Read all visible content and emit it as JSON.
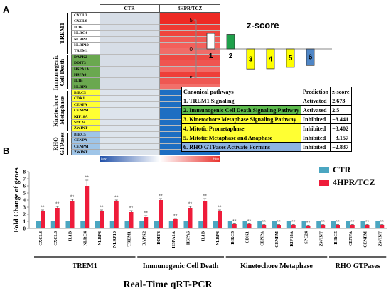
{
  "panels": {
    "a": "A",
    "b": "B"
  },
  "heatmap": {
    "columns": [
      "CTR",
      "4HPR/TCZ"
    ],
    "colorbar": {
      "low": "Low",
      "high": "High"
    },
    "groups": [
      {
        "label": "TREM1",
        "label_lines": [
          "TREM1"
        ],
        "style": "white",
        "genes": [
          "CXCL3",
          "CXCL8",
          "IL1B",
          "NLRC4",
          "NLRP3",
          "NLRP10",
          "TREM1"
        ]
      },
      {
        "label": "Immunogenic Cell Death",
        "label_lines": [
          "Immunogenic",
          "Cell Death"
        ],
        "style": "green",
        "genes": [
          "DAPK2",
          "DDIT3",
          "HSPA1A",
          "HSPA6",
          "IL1B",
          "NLRP3"
        ]
      },
      {
        "label": "Kinetochore Metaphase",
        "label_lines": [
          "Kinetochore",
          "Metaphase"
        ],
        "style": "yellow",
        "genes": [
          "BIRC5",
          "CDK1",
          "CENPA",
          "CENPM",
          "KIF18A",
          "SPC24",
          "ZWINT"
        ]
      },
      {
        "label": "RHO GTPases",
        "label_lines": [
          "RHO",
          "GTPases"
        ],
        "style": "blue",
        "genes": [
          "BIRC5",
          "CENPA",
          "CENPM",
          "ZWINT"
        ]
      }
    ],
    "colors": {
      "ctr": [
        "#d6dde6",
        "#d6dde6",
        "#d6dde6",
        "#d6dde6",
        "#d6dde6",
        "#d6dde6",
        "#d6dde6",
        "#d6dde6",
        "#d6dde6",
        "#d6dde6",
        "#d6dde6",
        "#d6dde6",
        "#d6dde6",
        "#dde4ec",
        "#dde4ec",
        "#dde4ec",
        "#dde4ec",
        "#dde4ec",
        "#dde4ec",
        "#dde4ec",
        "#dde4ec",
        "#dde4ec",
        "#dde4ec",
        "#dde4ec"
      ],
      "treated": [
        "#ee2a24",
        "#ee2a24",
        "#ef3a33",
        "#f0443d",
        "#f15a55",
        "#f3605b",
        "#f06c68",
        "#ee4a44",
        "#ef5550",
        "#f16b66",
        "#ee3f39",
        "#ef5752",
        "#f26f6a",
        "#1d6ec2",
        "#1d6ec2",
        "#1d6ec2",
        "#1d6ec2",
        "#1d6ec2",
        "#1d6ec2",
        "#1d6ec2",
        "#1d6ec2",
        "#1d6ec2",
        "#1d6ec2",
        "#1d6ec2"
      ]
    }
  },
  "zscore_title": "z-score",
  "chart_data": [
    {
      "type": "bar",
      "title": "z-score",
      "categories": [
        "1",
        "2",
        "3",
        "4",
        "5",
        "6"
      ],
      "values": [
        2.673,
        2.5,
        -3.441,
        -3.402,
        -3.157,
        -2.837
      ],
      "ylim": [
        -5,
        5
      ],
      "yticks": [
        -5,
        0,
        5
      ],
      "colors": [
        "#ffffff",
        "#1fa04b",
        "#ffff00",
        "#ffff00",
        "#ffff00",
        "#4f86c6"
      ]
    },
    {
      "type": "table",
      "columns": [
        "Canonical pathways",
        "Prediction",
        "z-score"
      ],
      "rows": [
        {
          "pathway": "1. TREM1 Signaling",
          "prediction": "Activated",
          "zscore": "2.673",
          "color": "#ffffff"
        },
        {
          "pathway": "2. Immunogenic Cell Death Signaling Pathway",
          "prediction": "Activated",
          "zscore": "2.5",
          "color": "#5dbb4d"
        },
        {
          "pathway": "3. Kinetochore Metaphase Signaling Pathway",
          "prediction": "Inhibited",
          "zscore": "−3.441",
          "color": "#ffff33"
        },
        {
          "pathway": "4. Mitotic Prometaphase",
          "prediction": "Inhibited",
          "zscore": "−3.402",
          "color": "#ffff33"
        },
        {
          "pathway": "5. Mitotic Metaphase and Anaphase",
          "prediction": "Inhibited",
          "zscore": "−3.157",
          "color": "#ffff33"
        },
        {
          "pathway": "6. RHO GTPases Activate Formins",
          "prediction": "Inhibited",
          "zscore": "−2.837",
          "color": "#8db3e2"
        }
      ]
    },
    {
      "type": "bar",
      "ylabel": "Fold Change of genes",
      "xlabel": "Real-Time qRT-PCR",
      "ylim": [
        0,
        8
      ],
      "yticks": [
        0,
        1,
        2,
        3,
        4,
        5,
        6,
        7,
        8
      ],
      "categories": [
        "CXCL3",
        "CXCL8",
        "IL1B",
        "NLRC4",
        "NLRP3",
        "NLRP10",
        "TREM1",
        "DAPK2",
        "DDIT3",
        "HSPA1A",
        "HSPA6",
        "IL1B",
        "NLRP3",
        "BIRC5",
        "CDK1",
        "CENPA",
        "CENPM",
        "KIF18A",
        "SPC24",
        "ZWINT",
        "BIRC5",
        "CENPA",
        "CENPM",
        "ZWINT"
      ],
      "series": [
        {
          "name": "CTR",
          "color": "#4ba6c1",
          "values": [
            1,
            1,
            1,
            1,
            1,
            1,
            1,
            1,
            1,
            1,
            1,
            1,
            1,
            1,
            1,
            1,
            1,
            1,
            1,
            1,
            1,
            1,
            1,
            1
          ]
        },
        {
          "name": "4HPR/TCZ",
          "color": "#ee1c3a",
          "values": [
            2.4,
            2.9,
            3.9,
            6.0,
            2.4,
            3.8,
            2.3,
            1.6,
            4.0,
            1.3,
            2.9,
            3.9,
            2.4,
            0.6,
            0.6,
            0.5,
            0.5,
            0.5,
            0.4,
            0.5,
            0.5,
            0.5,
            0.5,
            0.5
          ]
        }
      ],
      "errors": [
        0.2,
        0.2,
        0.2,
        0.8,
        0.2,
        0.2,
        0.2,
        0.2,
        0.2,
        0.1,
        0.2,
        0.3,
        0.2,
        0.05,
        0.05,
        0.05,
        0.05,
        0.05,
        0.05,
        0.05,
        0.05,
        0.05,
        0.05,
        0.05
      ],
      "significance": "**",
      "group_labels": [
        {
          "label": "TREM1",
          "start": 0,
          "end": 6
        },
        {
          "label": "Immunogenic Cell Death",
          "start": 7,
          "end": 12
        },
        {
          "label": "Kinetochore Metaphase",
          "start": 13,
          "end": 19
        },
        {
          "label": "RHO GTPases",
          "start": 20,
          "end": 23
        }
      ],
      "legend": "top-right"
    }
  ]
}
